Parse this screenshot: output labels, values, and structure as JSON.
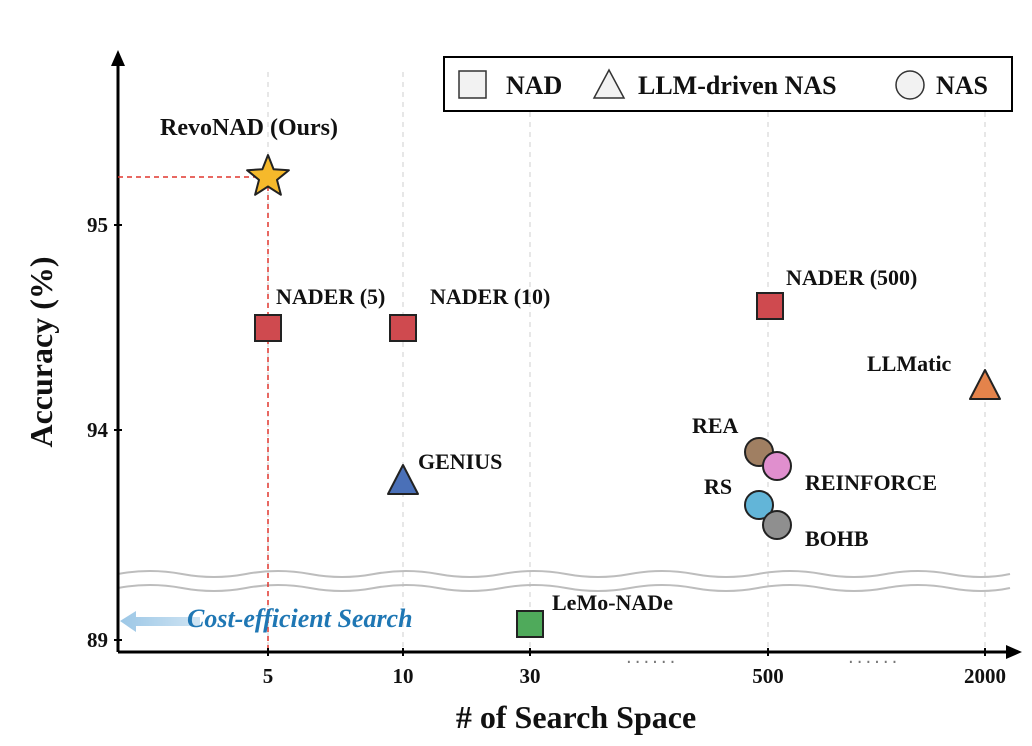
{
  "chart_data": {
    "type": "scatter",
    "xlabel": "# of Search Space",
    "ylabel": "Accuracy (%)",
    "x_ticks": [
      "5",
      "10",
      "30",
      "500",
      "2000"
    ],
    "y_ticks": [
      "89",
      "94",
      "95"
    ],
    "x_scale": "categorical (broken axis)",
    "y_scale": "broken axis",
    "ylim": [
      89,
      95.8
    ],
    "grid": "vertical dashed lines at x ticks",
    "legend": {
      "placement": "top-right",
      "entries": [
        {
          "shape": "square",
          "label": "NAD"
        },
        {
          "shape": "triangle",
          "label": "LLM-driven NAS"
        },
        {
          "shape": "circle",
          "label": "NAS"
        }
      ]
    },
    "annotation": "Cost-efficient Search",
    "points": [
      {
        "label": "RevoNAD (Ours)",
        "x": "5",
        "y": 95.2,
        "marker": "star",
        "color": "#f6b92b"
      },
      {
        "label": "NADER (5)",
        "x": "5",
        "y": 94.5,
        "marker": "square",
        "color": "#cf4a4f"
      },
      {
        "label": "NADER (10)",
        "x": "10",
        "y": 94.5,
        "marker": "square",
        "color": "#cf4a4f"
      },
      {
        "label": "NADER (500)",
        "x": "500",
        "y": 94.6,
        "marker": "square",
        "color": "#cf4a4f"
      },
      {
        "label": "LLMatic",
        "x": "2000",
        "y": 94.2,
        "marker": "triangle",
        "color": "#e4834b"
      },
      {
        "label": "GENIUS",
        "x": "10",
        "y": 93.7,
        "marker": "triangle",
        "color": "#4a70b8"
      },
      {
        "label": "REA",
        "x": "500",
        "y": 93.9,
        "marker": "circle",
        "color": "#a07f62"
      },
      {
        "label": "REINFORCE",
        "x": "500",
        "y": 93.8,
        "marker": "circle",
        "color": "#e08fce"
      },
      {
        "label": "RS",
        "x": "500",
        "y": 93.6,
        "marker": "circle",
        "color": "#62b5d8"
      },
      {
        "label": "BOHB",
        "x": "500",
        "y": 93.5,
        "marker": "circle",
        "color": "#8f8f8f"
      },
      {
        "label": "LeMo-NADe",
        "x": "30",
        "y": 89.1,
        "marker": "square",
        "color": "#4faa5b"
      }
    ]
  }
}
